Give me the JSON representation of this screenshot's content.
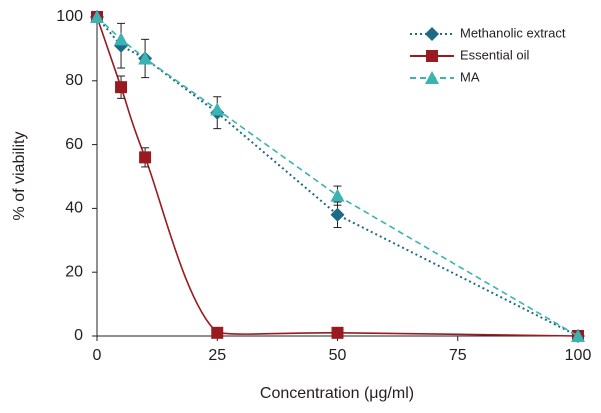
{
  "chart_data": {
    "type": "line",
    "x_label": "Concentration (μg/ml)",
    "y_label": "% of viability",
    "x": [
      0,
      5,
      10,
      25,
      50,
      100
    ],
    "series": [
      {
        "name": "Methanolic extract",
        "color": "#1d6a85",
        "marker": "diamond",
        "dash": "2,3",
        "values": [
          100,
          91,
          87,
          70,
          38,
          0
        ],
        "errors": [
          0,
          7,
          6,
          5,
          4,
          0
        ]
      },
      {
        "name": "Essential oil",
        "color": "#9a1b1f",
        "marker": "square",
        "dash": "none",
        "smooth": true,
        "values": [
          100,
          78,
          56,
          1,
          1,
          0
        ],
        "errors": [
          0,
          3.5,
          3,
          0,
          0,
          0
        ]
      },
      {
        "name": "MA",
        "color": "#3bb3b3",
        "marker": "triangle",
        "dash": "6,4",
        "values": [
          100,
          93,
          87,
          71,
          44,
          0
        ],
        "errors": [
          0,
          0,
          0,
          0,
          3,
          0
        ]
      }
    ],
    "xlim": [
      0,
      100
    ],
    "xticks": [
      0,
      25,
      50,
      75,
      100
    ],
    "ylim": [
      0,
      100
    ],
    "yticks": [
      0,
      20,
      40,
      60,
      80,
      100
    ],
    "grid": false,
    "legend": "top-right"
  }
}
